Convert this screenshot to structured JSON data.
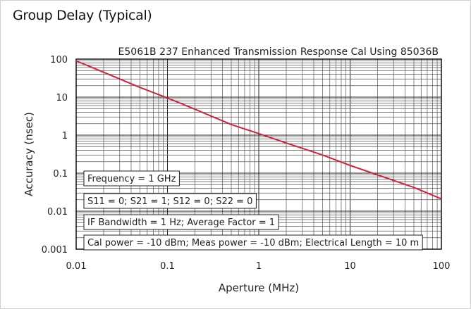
{
  "title": "Group Delay (Typical)",
  "chart_data": {
    "type": "line",
    "subtitle": "E5061B 237 Enhanced Transmission Response Cal Using 85036B",
    "xlabel": "Aperture (MHz)",
    "ylabel": "Accuracy (nsec)",
    "xscale": "log",
    "yscale": "log",
    "xlim": [
      0.01,
      100
    ],
    "ylim": [
      0.001,
      100
    ],
    "x_ticks": [
      "0.01",
      "0.1",
      "1",
      "10",
      "100"
    ],
    "y_ticks": [
      "100",
      "10",
      "1",
      "0.1",
      "0.01",
      "0.001"
    ],
    "grid": true,
    "line_color": "#d81e3c",
    "series": [
      {
        "x": [
          0.01,
          0.02,
          0.05,
          0.1,
          0.2,
          0.5,
          1,
          2,
          5,
          10,
          20,
          50,
          100
        ],
        "values": [
          90,
          45,
          18,
          9.5,
          4.8,
          1.9,
          1.1,
          0.62,
          0.3,
          0.16,
          0.09,
          0.042,
          0.021
        ]
      }
    ],
    "annotations": [
      "Frequency = 1 GHz",
      "S11 = 0; S21 = 1; S12 = 0; S22 = 0",
      "IF Bandwidth = 1 Hz; Average Factor = 1",
      "Cal power = -10 dBm; Meas power = -10 dBm; Electrical Length = 10 m"
    ]
  }
}
